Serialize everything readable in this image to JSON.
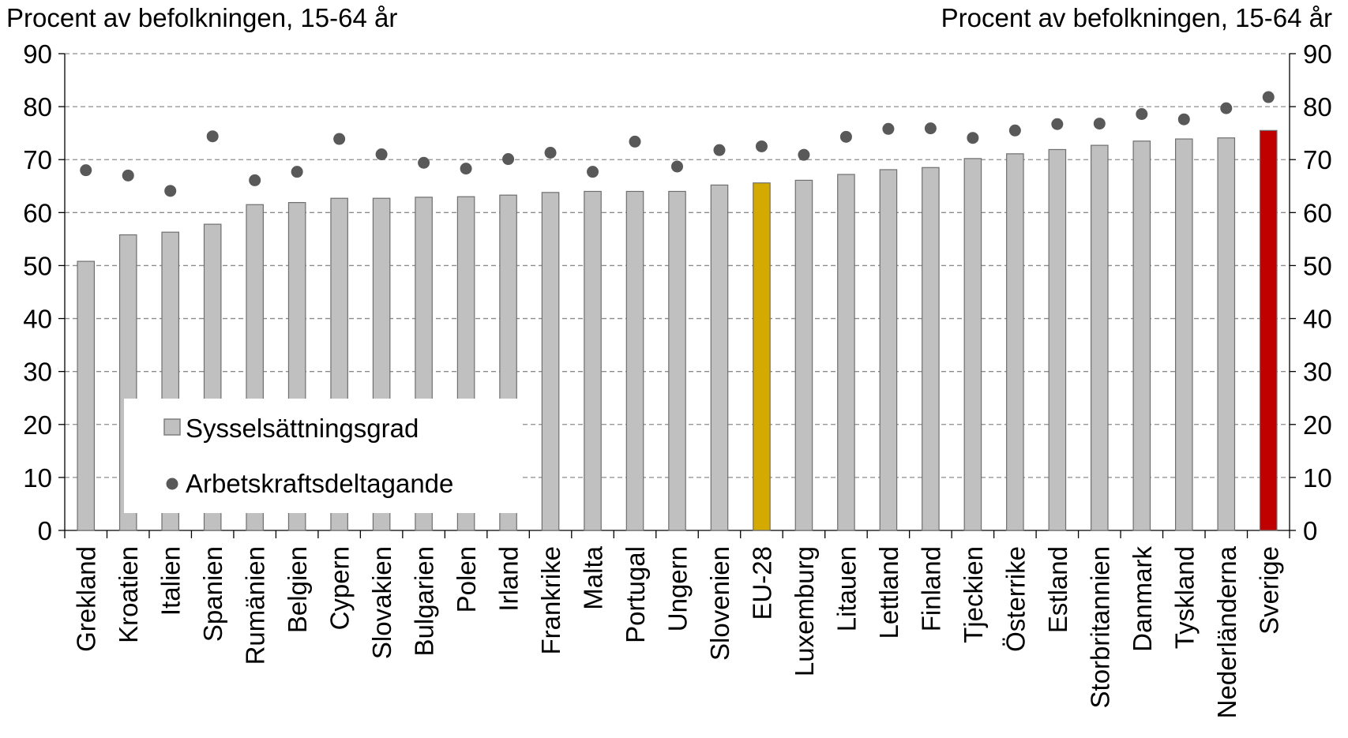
{
  "chart_data": {
    "type": "bar",
    "y_unit_left": "Procent av befolkningen, 15-64 år",
    "y_unit_right": "Procent av befolkningen, 15-64 år",
    "ylim": [
      0,
      90
    ],
    "yticks": [
      "0",
      "10",
      "20",
      "30",
      "40",
      "50",
      "60",
      "70",
      "80",
      "90"
    ],
    "grid": "horizontal dashed",
    "legend_position": "lower-left",
    "categories": [
      "Grekland",
      "Kroatien",
      "Italien",
      "Spanien",
      "Rumänien",
      "Belgien",
      "Cypern",
      "Slovakien",
      "Bulgarien",
      "Polen",
      "Irland",
      "Frankrike",
      "Malta",
      "Portugal",
      "Ungern",
      "Slovenien",
      "EU-28",
      "Luxemburg",
      "Litauen",
      "Lettland",
      "Finland",
      "Tjeckien",
      "Österrike",
      "Estland",
      "Storbritannien",
      "Danmark",
      "Tyskland",
      "Nederländerna",
      "Sverige"
    ],
    "series": [
      {
        "name": "Sysselsättningsgrad",
        "type": "bar",
        "color": "#c0c0c0",
        "highlight_colors": {
          "EU-28": "#d4a900",
          "Sverige": "#c00000"
        },
        "values": [
          50.8,
          55.8,
          56.3,
          57.8,
          61.5,
          61.9,
          62.7,
          62.7,
          62.9,
          63.0,
          63.3,
          63.8,
          64.0,
          64.0,
          64.0,
          65.2,
          65.6,
          66.1,
          67.2,
          68.1,
          68.5,
          70.2,
          71.1,
          71.9,
          72.7,
          73.5,
          73.9,
          74.1,
          75.5
        ]
      },
      {
        "name": "Arbetskraftsdeltagande",
        "type": "scatter",
        "color": "#595959",
        "values": [
          68.0,
          67.0,
          64.1,
          74.4,
          66.1,
          67.7,
          73.9,
          71.0,
          69.4,
          68.3,
          70.1,
          71.3,
          67.7,
          73.4,
          68.7,
          71.8,
          72.5,
          70.9,
          74.3,
          75.8,
          75.9,
          74.1,
          75.5,
          76.7,
          76.8,
          78.6,
          77.6,
          79.7,
          81.8
        ]
      }
    ]
  }
}
